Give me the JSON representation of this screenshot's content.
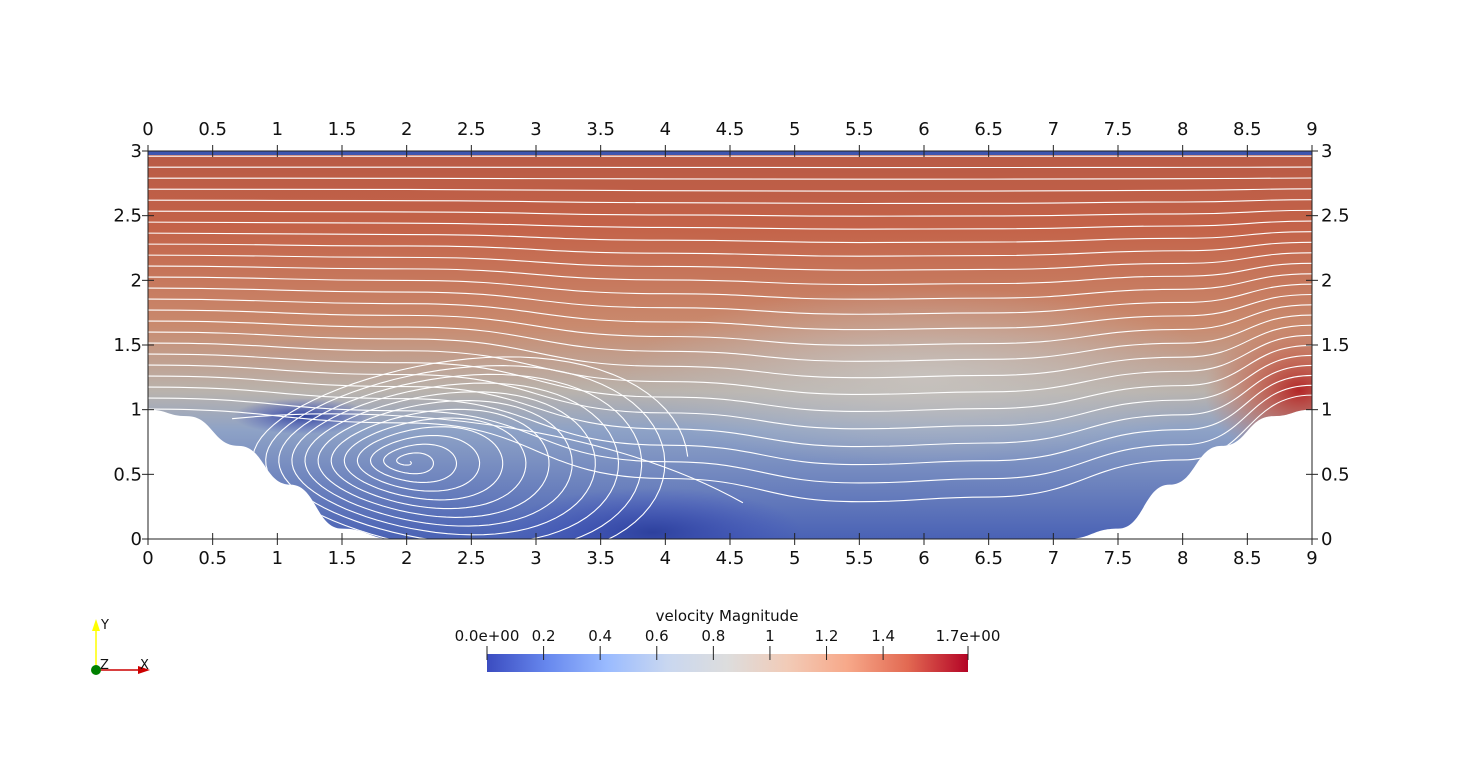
{
  "chart_data": {
    "type": "heatmap",
    "title": "",
    "xlim": [
      0,
      9
    ],
    "ylim": [
      0,
      3
    ],
    "x_ticks": [
      "0",
      "0.5",
      "1",
      "1.5",
      "2",
      "2.5",
      "3",
      "3.5",
      "4",
      "4.5",
      "5",
      "5.5",
      "6",
      "6.5",
      "7",
      "7.5",
      "8",
      "8.5",
      "9"
    ],
    "y_ticks": [
      "0",
      "0.5",
      "1",
      "1.5",
      "2",
      "2.5",
      "3"
    ],
    "bottom_wall": [
      [
        0,
        1.0
      ],
      [
        0.3,
        0.95
      ],
      [
        0.7,
        0.72
      ],
      [
        1.1,
        0.42
      ],
      [
        1.5,
        0.08
      ],
      [
        1.9,
        0.0
      ],
      [
        7.1,
        0.0
      ],
      [
        7.5,
        0.08
      ],
      [
        7.9,
        0.42
      ],
      [
        8.3,
        0.72
      ],
      [
        8.7,
        0.95
      ],
      [
        9.0,
        1.0
      ]
    ],
    "vortex_center": [
      2.0,
      0.6
    ],
    "colorbar": {
      "title": "velocity Magnitude",
      "range": [
        0.0,
        1.7
      ],
      "labels": [
        "0.0e+00",
        "0.2",
        "0.4",
        "0.6",
        "0.8",
        "1",
        "1.2",
        "1.4",
        "1.7e+00"
      ],
      "tick_values": [
        0.2,
        0.4,
        0.6,
        0.8,
        1.0,
        1.2,
        1.4
      ],
      "colormap": [
        "#3b4cc0",
        "#6788ee",
        "#9abbff",
        "#c9d7f0",
        "#dddddd",
        "#f2cbb7",
        "#f7a889",
        "#e26952",
        "#b40426"
      ]
    },
    "orientation_axes": {
      "y": "Y",
      "z": "Z",
      "x": "X",
      "y_color": "#ffff00",
      "z_color": "#008000",
      "x_color": "#cc0000"
    }
  }
}
